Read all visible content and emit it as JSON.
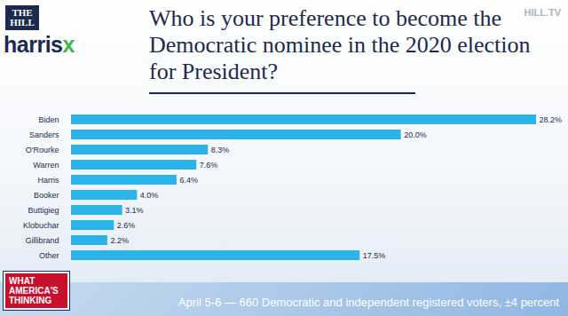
{
  "chart_data": {
    "type": "bar",
    "orientation": "horizontal",
    "title": "Who is your preference to become the Democratic nominee in the 2020 election for President?",
    "categories": [
      "Biden",
      "Sanders",
      "O'Rourke",
      "Warren",
      "Harris",
      "Booker",
      "Buttigieg",
      "Klobuchar",
      "Gillibrand",
      "Other"
    ],
    "values": [
      28.2,
      20.0,
      8.3,
      7.6,
      6.4,
      4.0,
      3.1,
      2.6,
      2.2,
      17.5
    ],
    "value_labels": [
      "28.2%",
      "20.0%",
      "8.3%",
      "7.6%",
      "6.4%",
      "4.0%",
      "3.1%",
      "2.6%",
      "2.2%",
      "17.5%"
    ],
    "data_labels": true,
    "color": "#2bb3ea",
    "tick_labels": "y",
    "grid": false,
    "annotations": [
      "THE HILL",
      "harrisx",
      "HILL.TV",
      "WHAT AMERICA'S THINKING",
      "April 5-6 — 660 Democratic and independent registered voters, ±4 percent"
    ]
  }
}
